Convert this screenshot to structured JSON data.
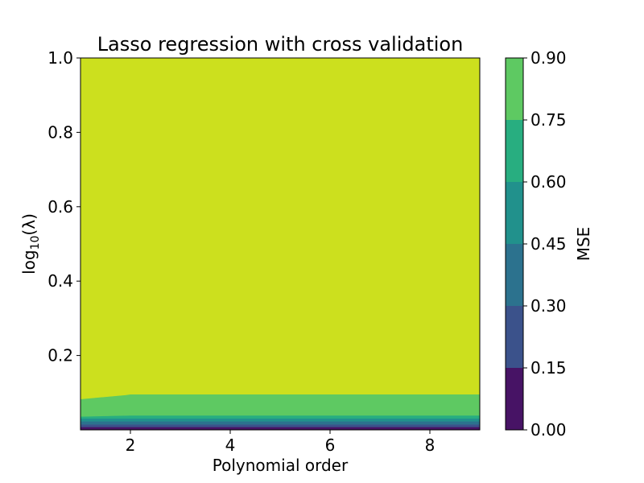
{
  "chart_data": {
    "type": "contourf",
    "title": "Lasso regression with cross validation",
    "xlabel": "Polynomial order",
    "ylabel": {
      "base": "log",
      "sub": "10",
      "arg": "(λ)"
    },
    "xlim": [
      1,
      9
    ],
    "ylim": [
      0.0,
      1.0
    ],
    "xticks": [
      2,
      4,
      6,
      8
    ],
    "xticklabels": [
      "2",
      "4",
      "6",
      "8"
    ],
    "yticks": [
      0.2,
      0.4,
      0.6,
      0.8,
      1.0
    ],
    "yticklabels": [
      "0.2",
      "0.4",
      "0.6",
      "0.8",
      "1.0"
    ],
    "colorbar": {
      "label": "MSE",
      "levels": [
        0.0,
        0.15,
        0.3,
        0.45,
        0.6,
        0.75,
        0.9
      ],
      "ticklabels": [
        "0.00",
        "0.15",
        "0.30",
        "0.45",
        "0.60",
        "0.75",
        "0.90"
      ],
      "colors": [
        "#471365",
        "#3b528b",
        "#2c728e",
        "#21918c",
        "#28ae80",
        "#5ec962",
        "#cce01e"
      ]
    },
    "boundaries": [
      {
        "lower_band": 0,
        "upper_band": 1,
        "x": [
          1,
          9
        ],
        "y": [
          0.008,
          0.008
        ]
      },
      {
        "lower_band": 1,
        "upper_band": 2,
        "x": [
          1,
          9
        ],
        "y": [
          0.015,
          0.015
        ]
      },
      {
        "lower_band": 2,
        "upper_band": 3,
        "x": [
          1,
          9
        ],
        "y": [
          0.023,
          0.023
        ]
      },
      {
        "lower_band": 3,
        "upper_band": 4,
        "x": [
          1,
          9
        ],
        "y": [
          0.031,
          0.031
        ]
      },
      {
        "lower_band": 4,
        "upper_band": 5,
        "x": [
          1,
          1.6,
          2,
          9
        ],
        "y": [
          0.036,
          0.038,
          0.039,
          0.039
        ]
      },
      {
        "lower_band": 5,
        "upper_band": 6,
        "x": [
          1,
          1.4,
          1.9,
          2,
          9
        ],
        "y": [
          0.083,
          0.088,
          0.094,
          0.096,
          0.096
        ]
      }
    ]
  }
}
